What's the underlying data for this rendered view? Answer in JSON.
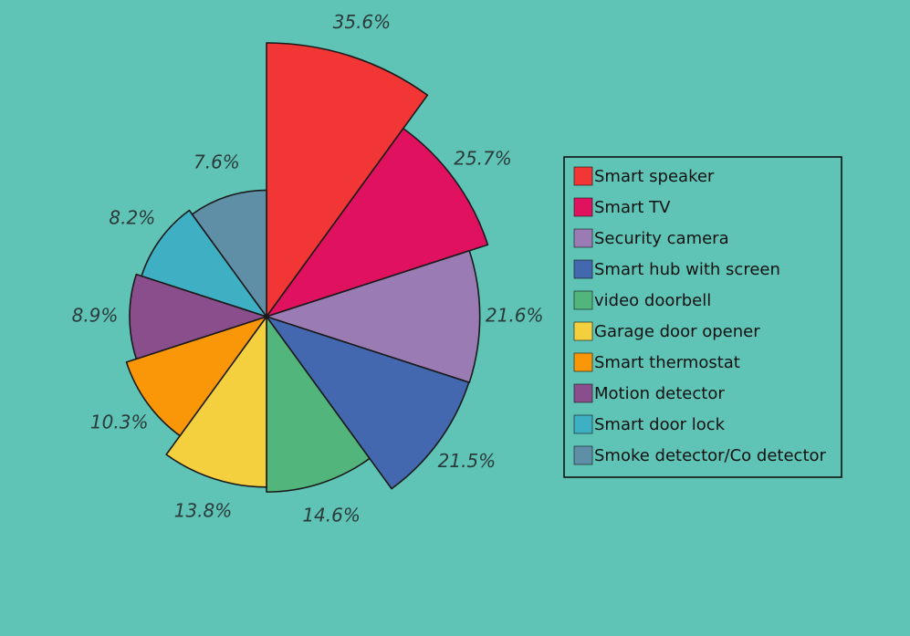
{
  "chart_data": {
    "type": "pie",
    "variant": "polar-area",
    "title": "",
    "legend_position": "right",
    "series": [
      {
        "name": "Smart speaker",
        "value": 35.6,
        "label": "35.6%",
        "color": "#f23535"
      },
      {
        "name": "Smart TV",
        "value": 25.7,
        "label": "25.7%",
        "color": "#e0115e"
      },
      {
        "name": "Security camera",
        "value": 21.6,
        "label": "21.6%",
        "color": "#9a7bb3"
      },
      {
        "name": "Smart hub with screen",
        "value": 21.5,
        "label": "21.5%",
        "color": "#4468b0"
      },
      {
        "name": "video doorbell",
        "value": 14.6,
        "label": "14.6%",
        "color": "#52b57c"
      },
      {
        "name": "Garage door opener",
        "value": 13.8,
        "label": "13.8%",
        "color": "#f4d03f"
      },
      {
        "name": "Smart thermostat",
        "value": 10.3,
        "label": "10.3%",
        "color": "#f99708"
      },
      {
        "name": "Motion detector",
        "value": 8.9,
        "label": "8.9%",
        "color": "#8a4e8c"
      },
      {
        "name": "Smart door lock",
        "value": 8.2,
        "label": "8.2%",
        "color": "#3fafc4"
      },
      {
        "name": "Smoke detector/Co detector",
        "value": 7.6,
        "label": "7.6%",
        "color": "#5f8fa6"
      }
    ]
  }
}
